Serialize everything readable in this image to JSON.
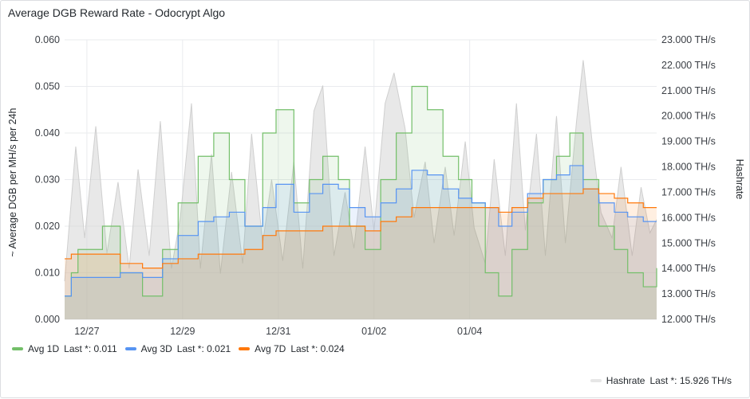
{
  "panel": {
    "title": "Average DGB Reward Rate - Odocrypt Algo"
  },
  "colors": {
    "avg1d": "#73bf69",
    "avg3d": "#5794f2",
    "avg7d": "#ff780a",
    "hashrate": "#d6d6d6",
    "grid": "#e9ebee"
  },
  "chart_data": {
    "type": "line",
    "title": "Average DGB Reward Rate - Odocrypt Algo",
    "x_ticks": [
      "12/27",
      "12/29",
      "12/31",
      "01/02",
      "01/04"
    ],
    "x_range": [
      "12/26 12:00",
      "01/05 12:00"
    ],
    "y_left": {
      "label": "~ Average DGB per MH/s per 24h",
      "range": [
        0,
        0.06
      ],
      "ticks": [
        "0.000",
        "0.010",
        "0.020",
        "0.030",
        "0.040",
        "0.050",
        "0.060"
      ]
    },
    "y_right": {
      "label": "Hashrate",
      "range": [
        12,
        23
      ],
      "ticks": [
        "12.000 TH/s",
        "13.000 TH/s",
        "14.000 TH/s",
        "15.000 TH/s",
        "16.000 TH/s",
        "17.000 TH/s",
        "18.000 TH/s",
        "19.000 TH/s",
        "20.000 TH/s",
        "21.000 TH/s",
        "22.000 TH/s",
        "23.000 TH/s"
      ]
    },
    "grid": true,
    "legend_placement": "bottom-left",
    "series": [
      {
        "name": "Avg 1D",
        "axis": "left",
        "style": "step",
        "points": [
          [
            0,
            0.005
          ],
          [
            0.3,
            0.01
          ],
          [
            0.6,
            0.015
          ],
          [
            1.7,
            0.02
          ],
          [
            2.5,
            0.01
          ],
          [
            3.5,
            0.005
          ],
          [
            4.4,
            0.015
          ],
          [
            5.1,
            0.025
          ],
          [
            6.0,
            0.035
          ],
          [
            6.7,
            0.04
          ],
          [
            7.4,
            0.03
          ],
          [
            8.1,
            0.02
          ],
          [
            8.9,
            0.04
          ],
          [
            9.5,
            0.045
          ],
          [
            10.3,
            0.025
          ],
          [
            11.0,
            0.03
          ],
          [
            11.6,
            0.035
          ],
          [
            12.3,
            0.03
          ],
          [
            12.8,
            0.02
          ],
          [
            13.5,
            0.015
          ],
          [
            14.2,
            0.03
          ],
          [
            14.9,
            0.04
          ],
          [
            15.6,
            0.05
          ],
          [
            16.3,
            0.045
          ],
          [
            17.0,
            0.035
          ],
          [
            17.7,
            0.03
          ],
          [
            18.3,
            0.025
          ],
          [
            18.9,
            0.01
          ],
          [
            19.5,
            0.005
          ],
          [
            20.1,
            0.015
          ],
          [
            20.8,
            0.025
          ],
          [
            21.5,
            0.03
          ],
          [
            22.1,
            0.035
          ],
          [
            22.7,
            0.04
          ],
          [
            23.3,
            0.03
          ],
          [
            24.0,
            0.02
          ],
          [
            24.7,
            0.015
          ],
          [
            25.3,
            0.01
          ],
          [
            26.0,
            0.007
          ],
          [
            26.6,
            0.011
          ]
        ]
      },
      {
        "name": "Avg 3D",
        "axis": "left",
        "style": "step",
        "points": [
          [
            0,
            0.005
          ],
          [
            0.3,
            0.009
          ],
          [
            2.5,
            0.01
          ],
          [
            3.5,
            0.009
          ],
          [
            4.4,
            0.013
          ],
          [
            5.1,
            0.018
          ],
          [
            6.0,
            0.021
          ],
          [
            6.7,
            0.022
          ],
          [
            7.4,
            0.023
          ],
          [
            8.1,
            0.02
          ],
          [
            8.9,
            0.024
          ],
          [
            9.5,
            0.029
          ],
          [
            10.3,
            0.023
          ],
          [
            11.0,
            0.027
          ],
          [
            11.6,
            0.029
          ],
          [
            12.3,
            0.028
          ],
          [
            12.8,
            0.024
          ],
          [
            13.5,
            0.022
          ],
          [
            14.2,
            0.025
          ],
          [
            14.9,
            0.028
          ],
          [
            15.6,
            0.032
          ],
          [
            16.3,
            0.031
          ],
          [
            17.0,
            0.028
          ],
          [
            17.7,
            0.026
          ],
          [
            18.3,
            0.025
          ],
          [
            18.9,
            0.024
          ],
          [
            19.5,
            0.02
          ],
          [
            20.1,
            0.023
          ],
          [
            20.8,
            0.027
          ],
          [
            21.5,
            0.03
          ],
          [
            22.1,
            0.031
          ],
          [
            22.7,
            0.033
          ],
          [
            23.3,
            0.028
          ],
          [
            24.0,
            0.025
          ],
          [
            24.7,
            0.023
          ],
          [
            25.3,
            0.022
          ],
          [
            26.0,
            0.021
          ],
          [
            26.6,
            0.021
          ]
        ]
      },
      {
        "name": "Avg 7D",
        "axis": "left",
        "style": "step",
        "points": [
          [
            0,
            0.013
          ],
          [
            0.3,
            0.014
          ],
          [
            2.5,
            0.012
          ],
          [
            3.5,
            0.011
          ],
          [
            4.4,
            0.012
          ],
          [
            5.1,
            0.013
          ],
          [
            6.0,
            0.014
          ],
          [
            6.7,
            0.014
          ],
          [
            7.4,
            0.014
          ],
          [
            8.1,
            0.015
          ],
          [
            8.9,
            0.018
          ],
          [
            9.5,
            0.019
          ],
          [
            10.3,
            0.019
          ],
          [
            11.0,
            0.019
          ],
          [
            11.6,
            0.02
          ],
          [
            12.3,
            0.02
          ],
          [
            12.8,
            0.02
          ],
          [
            13.5,
            0.019
          ],
          [
            14.2,
            0.021
          ],
          [
            14.9,
            0.022
          ],
          [
            15.6,
            0.024
          ],
          [
            16.3,
            0.024
          ],
          [
            17.0,
            0.024
          ],
          [
            17.7,
            0.024
          ],
          [
            18.3,
            0.024
          ],
          [
            18.9,
            0.024
          ],
          [
            19.5,
            0.023
          ],
          [
            20.1,
            0.024
          ],
          [
            20.8,
            0.026
          ],
          [
            21.5,
            0.027
          ],
          [
            22.1,
            0.027
          ],
          [
            22.7,
            0.027
          ],
          [
            23.3,
            0.028
          ],
          [
            24.0,
            0.027
          ],
          [
            24.7,
            0.026
          ],
          [
            25.3,
            0.025
          ],
          [
            26.0,
            0.024
          ],
          [
            26.6,
            0.024
          ]
        ]
      },
      {
        "name": "Hashrate",
        "axis": "right",
        "style": "area",
        "points": [
          [
            0,
            13.5
          ],
          [
            0.5,
            18.8
          ],
          [
            0.9,
            15.2
          ],
          [
            1.4,
            19.6
          ],
          [
            1.9,
            14.6
          ],
          [
            2.4,
            17.4
          ],
          [
            2.9,
            14.0
          ],
          [
            3.3,
            17.9
          ],
          [
            3.8,
            14.5
          ],
          [
            4.3,
            19.8
          ],
          [
            4.8,
            14.0
          ],
          [
            5.2,
            16.0
          ],
          [
            5.7,
            20.5
          ],
          [
            6.1,
            14.0
          ],
          [
            6.6,
            18.5
          ],
          [
            7.0,
            13.8
          ],
          [
            7.5,
            17.8
          ],
          [
            8.0,
            14.2
          ],
          [
            8.4,
            19.3
          ],
          [
            8.9,
            15.0
          ],
          [
            9.3,
            17.5
          ],
          [
            9.8,
            14.3
          ],
          [
            10.3,
            18.2
          ],
          [
            10.7,
            14.0
          ],
          [
            11.2,
            20.2
          ],
          [
            11.6,
            21.2
          ],
          [
            12.1,
            14.5
          ],
          [
            12.6,
            17.0
          ],
          [
            13.0,
            14.8
          ],
          [
            13.5,
            18.8
          ],
          [
            13.9,
            15.5
          ],
          [
            14.4,
            20.5
          ],
          [
            14.8,
            21.7
          ],
          [
            15.3,
            19.5
          ],
          [
            15.7,
            16.0
          ],
          [
            16.2,
            18.2
          ],
          [
            16.6,
            15.0
          ],
          [
            17.1,
            18.0
          ],
          [
            17.5,
            15.3
          ],
          [
            18.0,
            19.0
          ],
          [
            18.4,
            15.6
          ],
          [
            18.9,
            14.2
          ],
          [
            19.3,
            18.3
          ],
          [
            19.8,
            14.5
          ],
          [
            20.3,
            20.5
          ],
          [
            20.7,
            15.5
          ],
          [
            21.2,
            19.3
          ],
          [
            21.6,
            14.5
          ],
          [
            22.1,
            20.0
          ],
          [
            22.5,
            15.0
          ],
          [
            23.0,
            19.8
          ],
          [
            23.3,
            22.2
          ],
          [
            23.7,
            19.0
          ],
          [
            24.1,
            16.2
          ],
          [
            24.6,
            15.2
          ],
          [
            25.0,
            18.0
          ],
          [
            25.5,
            14.5
          ],
          [
            25.9,
            17.2
          ],
          [
            26.3,
            15.4
          ],
          [
            26.6,
            15.926
          ]
        ]
      }
    ]
  },
  "legend": {
    "items": [
      {
        "label": "Avg 1D",
        "stat": "Last *: 0.011"
      },
      {
        "label": "Avg 3D",
        "stat": "Last *: 0.021"
      },
      {
        "label": "Avg 7D",
        "stat": "Last *: 0.024"
      }
    ],
    "hashrate": {
      "label": "Hashrate",
      "stat": "Last *: 15.926 TH/s"
    }
  }
}
